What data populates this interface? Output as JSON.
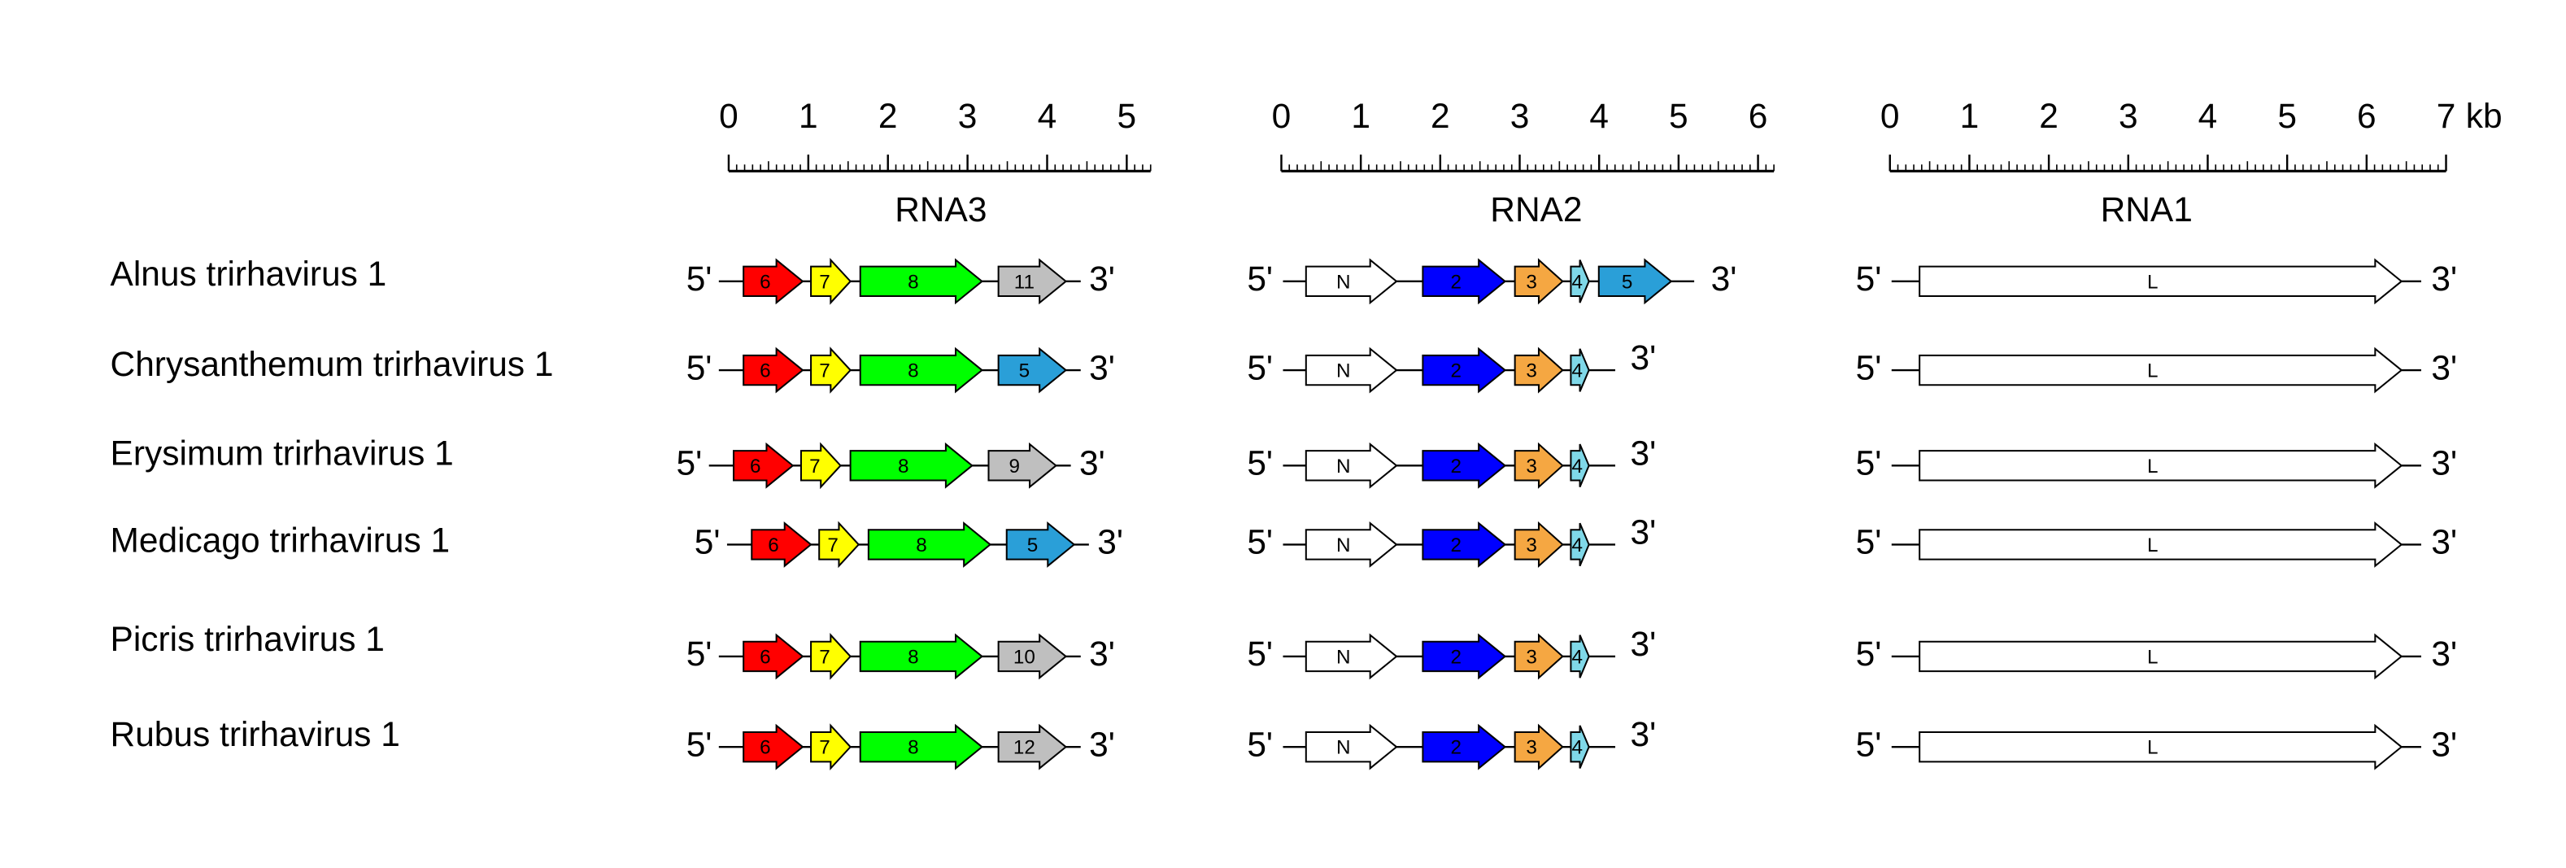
{
  "end_labels": [
    "5'",
    "3'"
  ],
  "scales": [
    {
      "title": "RNA3",
      "ticks": [
        0,
        1,
        2,
        3,
        4,
        5
      ]
    },
    {
      "title": "RNA2",
      "ticks": [
        0,
        1,
        2,
        3,
        4,
        5,
        6
      ]
    },
    {
      "title": "RNA1",
      "ticks": [
        0,
        1,
        2,
        3,
        4,
        5,
        6,
        7
      ],
      "unit": "kb"
    }
  ],
  "rows": [
    {
      "name": "Alnus trirhavirus 1",
      "rna3": [
        {
          "label": "6",
          "color": "#ff0000"
        },
        {
          "label": "7",
          "color": "#ffff00"
        },
        {
          "label": "8",
          "color": "#00ff00"
        },
        {
          "label": "11",
          "color": "#bfbfbf"
        }
      ],
      "rna2": [
        {
          "label": "N",
          "color": "#ffffff"
        },
        {
          "label": "2",
          "color": "#0000ff"
        },
        {
          "label": "3",
          "color": "#f5a742"
        },
        {
          "label": "4",
          "color": "#7fd8e8"
        },
        {
          "label": "5",
          "color": "#2a9fd8"
        }
      ],
      "rna1": [
        {
          "label": "L",
          "color": "#ffffff"
        }
      ]
    },
    {
      "name": "Chrysanthemum trirhavirus 1",
      "rna3": [
        {
          "label": "6",
          "color": "#ff0000"
        },
        {
          "label": "7",
          "color": "#ffff00"
        },
        {
          "label": "8",
          "color": "#00ff00"
        },
        {
          "label": "5",
          "color": "#2a9fd8"
        }
      ],
      "rna2": [
        {
          "label": "N",
          "color": "#ffffff"
        },
        {
          "label": "2",
          "color": "#0000ff"
        },
        {
          "label": "3",
          "color": "#f5a742"
        },
        {
          "label": "4",
          "color": "#7fd8e8"
        }
      ],
      "rna1": [
        {
          "label": "L",
          "color": "#ffffff"
        }
      ]
    },
    {
      "name": "Erysimum trirhavirus 1",
      "rna3": [
        {
          "label": "6",
          "color": "#ff0000"
        },
        {
          "label": "7",
          "color": "#ffff00"
        },
        {
          "label": "8",
          "color": "#00ff00"
        },
        {
          "label": "9",
          "color": "#bfbfbf"
        }
      ],
      "rna2": [
        {
          "label": "N",
          "color": "#ffffff"
        },
        {
          "label": "2",
          "color": "#0000ff"
        },
        {
          "label": "3",
          "color": "#f5a742"
        },
        {
          "label": "4",
          "color": "#7fd8e8"
        }
      ],
      "rna1": [
        {
          "label": "L",
          "color": "#ffffff"
        }
      ]
    },
    {
      "name": "Medicago trirhavirus 1",
      "rna3": [
        {
          "label": "6",
          "color": "#ff0000"
        },
        {
          "label": "7",
          "color": "#ffff00"
        },
        {
          "label": "8",
          "color": "#00ff00"
        },
        {
          "label": "5",
          "color": "#2a9fd8"
        }
      ],
      "rna2": [
        {
          "label": "N",
          "color": "#ffffff"
        },
        {
          "label": "2",
          "color": "#0000ff"
        },
        {
          "label": "3",
          "color": "#f5a742"
        },
        {
          "label": "4",
          "color": "#7fd8e8"
        }
      ],
      "rna1": [
        {
          "label": "L",
          "color": "#ffffff"
        }
      ]
    },
    {
      "name": "Picris trirhavirus 1",
      "rna3": [
        {
          "label": "6",
          "color": "#ff0000"
        },
        {
          "label": "7",
          "color": "#ffff00"
        },
        {
          "label": "8",
          "color": "#00ff00"
        },
        {
          "label": "10",
          "color": "#bfbfbf"
        }
      ],
      "rna2": [
        {
          "label": "N",
          "color": "#ffffff"
        },
        {
          "label": "2",
          "color": "#0000ff"
        },
        {
          "label": "3",
          "color": "#f5a742"
        },
        {
          "label": "4",
          "color": "#7fd8e8"
        }
      ],
      "rna1": [
        {
          "label": "L",
          "color": "#ffffff"
        }
      ]
    },
    {
      "name": "Rubus trirhavirus 1",
      "rna3": [
        {
          "label": "6",
          "color": "#ff0000"
        },
        {
          "label": "7",
          "color": "#ffff00"
        },
        {
          "label": "8",
          "color": "#00ff00"
        },
        {
          "label": "12",
          "color": "#bfbfbf"
        }
      ],
      "rna2": [
        {
          "label": "N",
          "color": "#ffffff"
        },
        {
          "label": "2",
          "color": "#0000ff"
        },
        {
          "label": "3",
          "color": "#f5a742"
        },
        {
          "label": "4",
          "color": "#7fd8e8"
        }
      ],
      "rna1": [
        {
          "label": "L",
          "color": "#ffffff"
        }
      ]
    }
  ]
}
